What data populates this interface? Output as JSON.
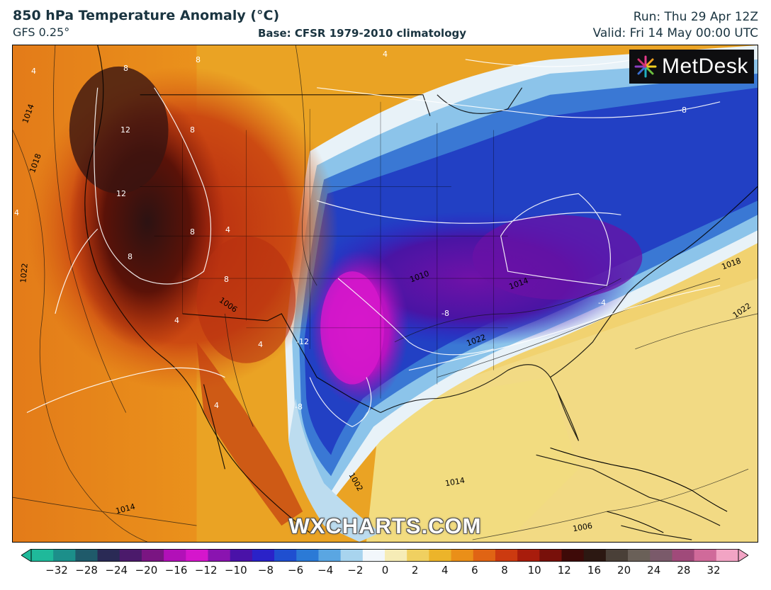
{
  "header": {
    "title": "850 hPa Temperature Anomaly (°C)",
    "model": "GFS 0.25°",
    "base": "Base: CFSR 1979-2010 climatology",
    "run": "Run: Thu 29 Apr 12Z",
    "valid": "Valid: Fri 14 May 00:00 UTC"
  },
  "logo": {
    "text": "MetDesk",
    "icon": "metdesk-burst-icon"
  },
  "watermark": "WXCHARTS.COM",
  "map": {
    "background_color": "#e8a020",
    "pressure_labels": [
      "1014",
      "1018",
      "1022",
      "1006",
      "1010",
      "1014",
      "1018",
      "1022",
      "1022",
      "1014",
      "1014",
      "1006",
      "1002"
    ],
    "anomaly_labels": [
      "4",
      "8",
      "8",
      "12",
      "8",
      "12",
      "8",
      "4",
      "4",
      "8",
      "8",
      "4",
      "4",
      "4",
      "-8",
      "-12",
      "-8",
      "-4",
      "-8",
      "4"
    ]
  },
  "colorbar": {
    "ticks": [
      "−32",
      "−28",
      "−24",
      "−20",
      "−16",
      "−12",
      "−10",
      "−8",
      "−6",
      "−4",
      "−2",
      "0",
      "2",
      "4",
      "6",
      "8",
      "10",
      "12",
      "16",
      "20",
      "24",
      "28",
      "32"
    ],
    "colors": [
      "#1fb99a",
      "#1c8f8a",
      "#1f5a6a",
      "#2a2a55",
      "#4b1a6b",
      "#7a1582",
      "#b210b8",
      "#d516cc",
      "#8a14b0",
      "#4a12a8",
      "#2a22c8",
      "#1f4fd0",
      "#2b7ad6",
      "#5aa6e2",
      "#a8d4ee",
      "#f2f7fb",
      "#f6ecb6",
      "#f0d060",
      "#ecb42a",
      "#ea8f18",
      "#e06414",
      "#cc3a10",
      "#a81c0c",
      "#78100a",
      "#3e0a08",
      "#2c1812",
      "#4a4038",
      "#6a6058",
      "#7a5a6a",
      "#a04a7a",
      "#d06a9a",
      "#f2a4c4"
    ]
  }
}
